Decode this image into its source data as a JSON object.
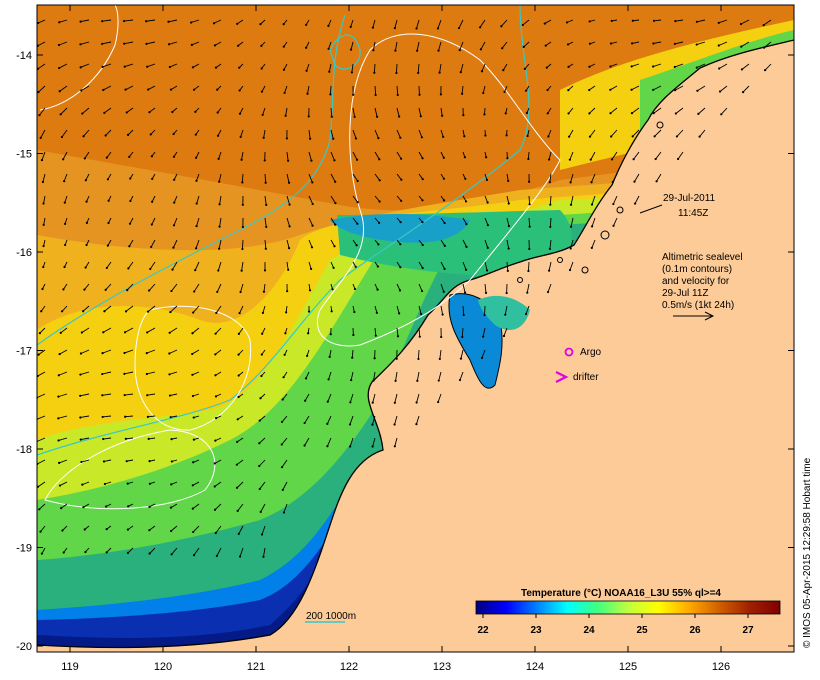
{
  "map": {
    "axes": {
      "x_ticks": [
        "119",
        "120",
        "121",
        "122",
        "123",
        "124",
        "125",
        "126"
      ],
      "y_ticks": [
        "-14",
        "-15",
        "-16",
        "-17",
        "-18",
        "-19",
        "-20"
      ]
    },
    "date_label": {
      "line1": "29-Jul-2011",
      "line2": "11:45Z"
    },
    "altimetry_note": {
      "line1": "Altimetric sealevel",
      "line2": "(0.1m contours)",
      "line3": "and velocity for",
      "line4": "29-Jul 11Z",
      "line5": "0.5m/s (1kt 24h)"
    },
    "legend": {
      "argo_label": "Argo",
      "drifter_label": "drifter",
      "depth_label": "200  1000m"
    },
    "colorbar": {
      "title": "Temperature (°C) NOAA16_L3U 55% ql>=4",
      "ticks": [
        "22",
        "23",
        "24",
        "25",
        "26",
        "27"
      ],
      "colors": [
        "#00007f",
        "#0000ff",
        "#0080ff",
        "#00ffff",
        "#40ff80",
        "#c0ff40",
        "#ffff00",
        "#ffaa00",
        "#d06000",
        "#a02000",
        "#7f0000"
      ]
    },
    "credit": "© IMOS 05-Apr-2015 12:29:58 Hobart time",
    "colors": {
      "land": "#fccb98",
      "contour": "#ffffff",
      "isobath": "#38c8c8",
      "argo": "#e000e0"
    }
  }
}
